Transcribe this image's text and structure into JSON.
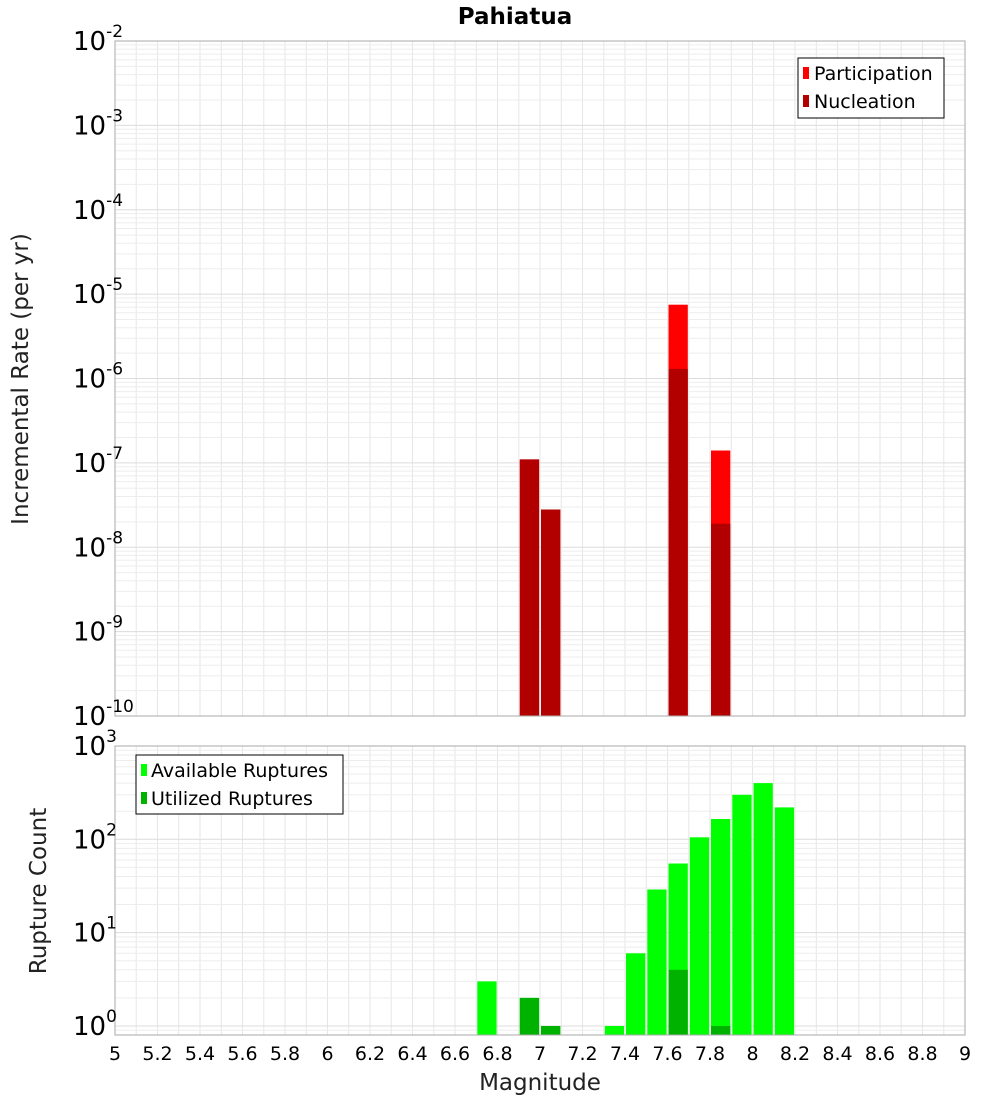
{
  "chart_data": [
    {
      "type": "bar",
      "title": "Pahiatua",
      "ylabel": "Incremental Rate (per yr)",
      "xlabel": "",
      "y_scale": "log",
      "ylim": [
        1e-10,
        0.01
      ],
      "xlim": [
        5,
        9
      ],
      "grid": true,
      "legend_position": "top-right",
      "y_ticks": [
        {
          "base": "10",
          "exp": "-10"
        },
        {
          "base": "10",
          "exp": "-9"
        },
        {
          "base": "10",
          "exp": "-8"
        },
        {
          "base": "10",
          "exp": "-7"
        },
        {
          "base": "10",
          "exp": "-6"
        },
        {
          "base": "10",
          "exp": "-5"
        },
        {
          "base": "10",
          "exp": "-4"
        },
        {
          "base": "10",
          "exp": "-3"
        },
        {
          "base": "10",
          "exp": "-2"
        }
      ],
      "series": [
        {
          "name": "Participation",
          "color": "#ff0000",
          "points": [
            {
              "x": 6.95,
              "y": 1.1e-07
            },
            {
              "x": 7.05,
              "y": 2.8e-08
            },
            {
              "x": 7.65,
              "y": 7.5e-06
            },
            {
              "x": 7.85,
              "y": 1.4e-07
            }
          ]
        },
        {
          "name": "Nucleation",
          "color": "#b20000",
          "points": [
            {
              "x": 6.95,
              "y": 1.1e-07
            },
            {
              "x": 7.05,
              "y": 2.8e-08
            },
            {
              "x": 7.65,
              "y": 1.3e-06
            },
            {
              "x": 7.85,
              "y": 1.9e-08
            }
          ]
        }
      ]
    },
    {
      "type": "bar",
      "title": "",
      "ylabel": "Rupture Count",
      "xlabel": "Magnitude",
      "y_scale": "log",
      "ylim": [
        0.8,
        1000
      ],
      "xlim": [
        5,
        9
      ],
      "grid": true,
      "legend_position": "top-left",
      "x_ticks": [
        "5",
        "5.2",
        "5.4",
        "5.6",
        "5.8",
        "6",
        "6.2",
        "6.4",
        "6.6",
        "6.8",
        "7",
        "7.2",
        "7.4",
        "7.6",
        "7.8",
        "8",
        "8.2",
        "8.4",
        "8.6",
        "8.8",
        "9"
      ],
      "y_ticks": [
        {
          "base": "10",
          "exp": "0"
        },
        {
          "base": "10",
          "exp": "1"
        },
        {
          "base": "10",
          "exp": "2"
        },
        {
          "base": "10",
          "exp": "3"
        }
      ],
      "series": [
        {
          "name": "Available Ruptures",
          "color": "#00ff00",
          "points": [
            {
              "x": 6.75,
              "y": 3
            },
            {
              "x": 6.95,
              "y": 2
            },
            {
              "x": 7.05,
              "y": 1
            },
            {
              "x": 7.35,
              "y": 1
            },
            {
              "x": 7.45,
              "y": 6
            },
            {
              "x": 7.55,
              "y": 29
            },
            {
              "x": 7.65,
              "y": 55
            },
            {
              "x": 7.75,
              "y": 105
            },
            {
              "x": 7.85,
              "y": 165
            },
            {
              "x": 7.95,
              "y": 300
            },
            {
              "x": 8.05,
              "y": 400
            },
            {
              "x": 8.15,
              "y": 220
            }
          ]
        },
        {
          "name": "Utilized Ruptures",
          "color": "#00b200",
          "points": [
            {
              "x": 6.95,
              "y": 2
            },
            {
              "x": 7.05,
              "y": 1
            },
            {
              "x": 7.65,
              "y": 4
            },
            {
              "x": 7.85,
              "y": 1
            }
          ]
        }
      ]
    }
  ]
}
